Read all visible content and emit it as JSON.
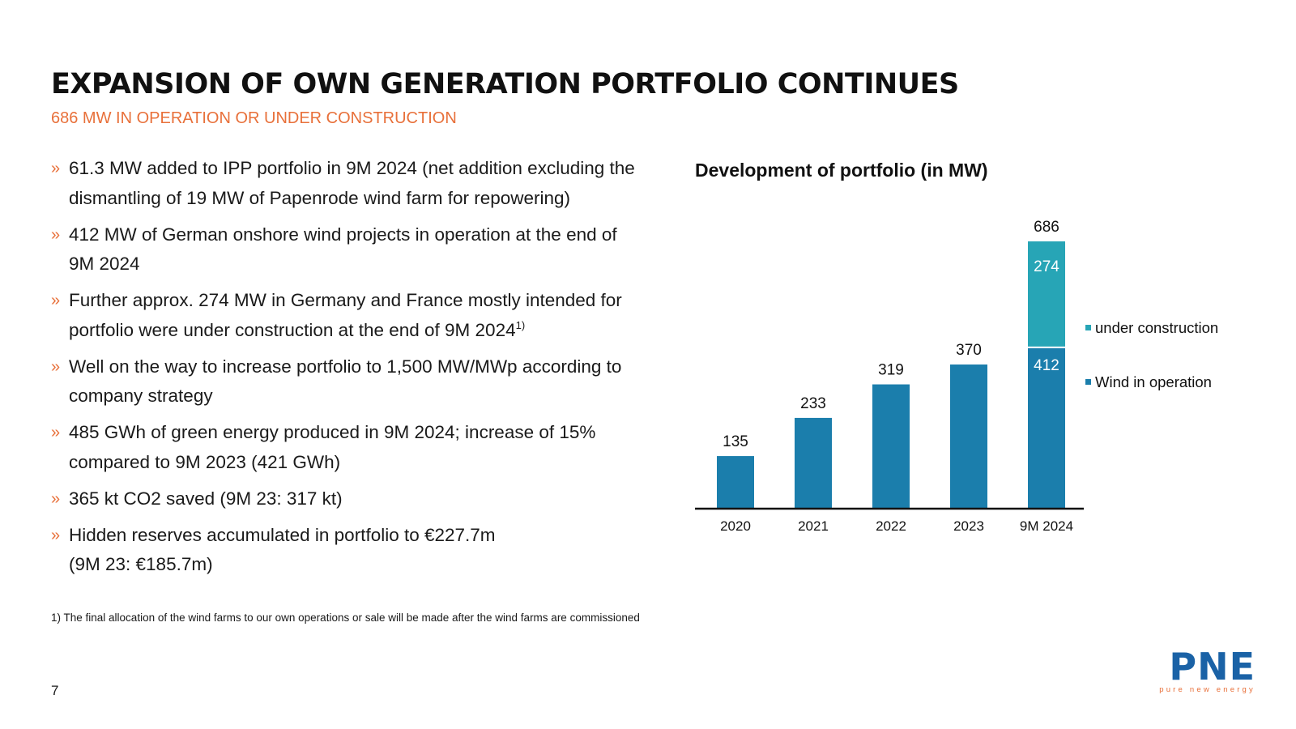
{
  "header": {
    "title": "EXPANSION OF OWN GENERATION PORTFOLIO CONTINUES",
    "subtitle": "686 MW IN OPERATION OR UNDER CONSTRUCTION"
  },
  "bullets": [
    {
      "marker": "»",
      "text": "61.3 MW added to IPP portfolio in 9M 2024 (net addition excluding the dismantling of 19 MW of Papenrode wind farm for repowering)"
    },
    {
      "marker": "»",
      "text": "412 MW of German onshore wind projects in operation at the end of 9M 2024"
    },
    {
      "marker": "»",
      "text": "Further approx. 274 MW in Germany and France mostly intended for portfolio were under construction at the end of 9M 2024",
      "sup": "1)"
    },
    {
      "marker": "»",
      "text": "Well on the way to increase portfolio to 1,500 MW/MWp according to company strategy"
    },
    {
      "marker": "»",
      "text": "485 GWh of green energy produced in 9M 2024; increase of 15% compared to 9M 2023 (421 GWh)"
    },
    {
      "marker": "»",
      "text": "365 kt CO2 saved (9M 23: 317 kt)"
    },
    {
      "marker": "»",
      "text": "Hidden reserves accumulated in portfolio to €227.7m",
      "text2": "(9M 23: €185.7m)"
    }
  ],
  "footnote": "1) The final allocation of the wind farms to our own operations or sale will be made after the wind farms are commissioned",
  "page_number": "7",
  "logo": {
    "text": "PNE",
    "tagline": "pure new energy"
  },
  "colors": {
    "accent": "#e8703a",
    "operation": "#1b7eac",
    "construction": "#27a5b6",
    "brand": "#1a62a6"
  },
  "chart_data": {
    "type": "bar",
    "stacked": true,
    "title": "Development of portfolio (in MW)",
    "categories": [
      "2020",
      "2021",
      "2022",
      "2023",
      "9M 2024"
    ],
    "series": [
      {
        "name": "Wind in operation",
        "values": [
          135,
          233,
          319,
          370,
          412
        ],
        "color": "#1b7eac"
      },
      {
        "name": "under construction",
        "values": [
          0,
          0,
          0,
          0,
          274
        ],
        "color": "#27a5b6"
      }
    ],
    "totals": [
      135,
      233,
      319,
      370,
      686
    ],
    "segment_labels": {
      "category": "9M 2024",
      "values": [
        "412",
        "274"
      ]
    },
    "legend": [
      "under construction",
      "Wind in operation"
    ],
    "legend_position": "right",
    "ylim": [
      0,
      686
    ],
    "grid": false,
    "xlabel": "",
    "ylabel": ""
  }
}
